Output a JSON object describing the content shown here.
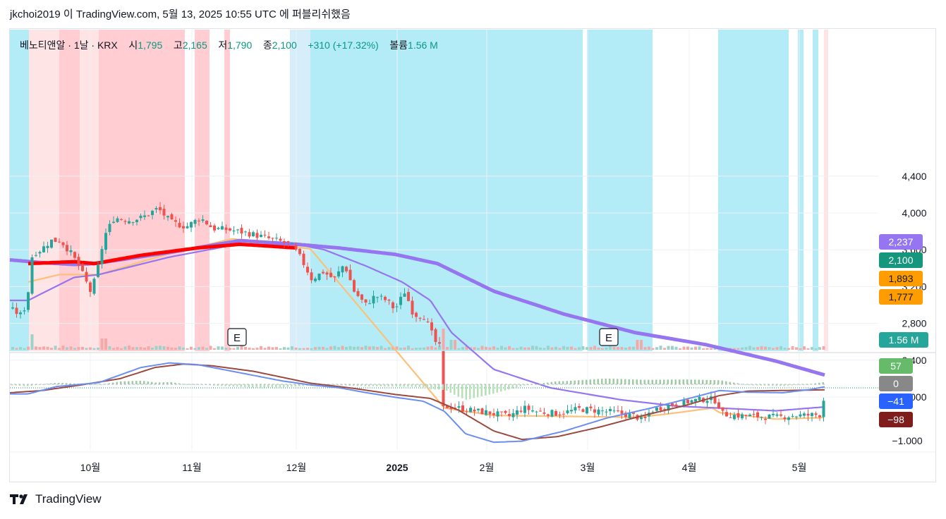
{
  "header": {
    "text": "jkchoi2019 이 TradingView.com, 5월 13, 2025 10:55 UTC 에 퍼블리쉬했음"
  },
  "legend": {
    "symbol": "베노티앤알 · 1날 · KRX",
    "open_label": "시",
    "open": "1,795",
    "high_label": "고",
    "high": "2,165",
    "low_label": "저",
    "low": "1,790",
    "close_label": "종",
    "close": "2,100",
    "change": "+310 (+17.32%)",
    "volume_label": "볼륨",
    "volume": "1.56 M"
  },
  "price_badges": [
    {
      "text": "2,237",
      "value": 2237,
      "color": "#9575f0"
    },
    {
      "text": "2,100",
      "value": 2100,
      "color": "#16967c"
    },
    {
      "text": "1,893",
      "value": 1893,
      "color": "#ff9d00"
    },
    {
      "text": "1,777",
      "value": 1777,
      "color": "#ff9d00"
    }
  ],
  "volume_badge": {
    "text": "1.56 M",
    "color": "#26a69a"
  },
  "macd_badges": [
    {
      "text": "57",
      "value": 57,
      "color": "#66bb6a"
    },
    {
      "text": "0",
      "value": 0,
      "color": "#888888"
    },
    {
      "text": "−41",
      "value": -41,
      "color": "#2962ff"
    },
    {
      "text": "−98",
      "value": -98,
      "color": "#7f1d1d"
    }
  ],
  "earnings_marker": "E",
  "footer": {
    "brand": "TradingView",
    "logo_icon": "tradingview-logo-icon"
  },
  "colors": {
    "up": "#26a69a",
    "down": "#ef5350",
    "sma_fast": "#9575f0",
    "sma_slow": "#9575f0",
    "ema_orange": "#fbc17a",
    "ema_red": "#ff0000",
    "macd": "#6b8ef0",
    "signal": "#9c4a3f",
    "bg_cyan": "#b3ebf7",
    "bg_red": "#ffcdd2",
    "bg_lightred": "#ffe4e6"
  },
  "chart_data": {
    "type": "candlestick",
    "title": "베노티앤알 · 1날 · KRX",
    "price_axis": {
      "ticks": [
        "4,400",
        "4,000",
        "3,600",
        "3,200",
        "2,800",
        "2,400",
        "2,000"
      ],
      "tick_values": [
        4400,
        4000,
        3600,
        3200,
        2800,
        2400,
        2000
      ],
      "range": [
        1500,
        4600
      ]
    },
    "macd_axis": {
      "ticks": [
        "−1.000"
      ],
      "tick_values": [
        -1000
      ],
      "range": [
        -1150,
        300
      ]
    },
    "x_axis": {
      "labels": [
        "10월",
        "11월",
        "12월",
        "2025",
        "2월",
        "3월",
        "4월",
        "5월"
      ]
    },
    "earnings_events": [
      "2024-11 E",
      "2025-03 E"
    ],
    "ohlc_sample": [
      {
        "period": "2024-09 early",
        "open": 3000,
        "high": 3050,
        "low": 2900,
        "close": 2950
      },
      {
        "period": "2024-09 mid",
        "open": 2950,
        "high": 3800,
        "low": 2950,
        "close": 3700
      },
      {
        "period": "2024-09 late",
        "open": 3700,
        "high": 3820,
        "low": 3350,
        "close": 3400
      },
      {
        "period": "2024-10 early",
        "open": 3200,
        "high": 3350,
        "low": 2980,
        "close": 3250
      },
      {
        "period": "2024-10 mid",
        "open": 3800,
        "high": 4050,
        "low": 3700,
        "close": 3950
      },
      {
        "period": "2024-10 late",
        "open": 3950,
        "high": 4250,
        "low": 3850,
        "close": 4000
      },
      {
        "period": "2024-11 early",
        "open": 3850,
        "high": 4050,
        "low": 3700,
        "close": 3900
      },
      {
        "period": "2024-11 mid",
        "open": 3750,
        "high": 3900,
        "low": 3600,
        "close": 3700
      },
      {
        "period": "2024-11 late",
        "open": 3700,
        "high": 3750,
        "low": 3400,
        "close": 3650
      },
      {
        "period": "2024-12 early",
        "open": 3600,
        "high": 3650,
        "low": 3250,
        "close": 3300
      },
      {
        "period": "2024-12 mid",
        "open": 3400,
        "high": 3500,
        "low": 3100,
        "close": 3200
      },
      {
        "period": "2024-12 late",
        "open": 3200,
        "high": 3300,
        "low": 2950,
        "close": 3100
      },
      {
        "period": "2025-01 early",
        "open": 3150,
        "high": 3300,
        "low": 3000,
        "close": 3250
      },
      {
        "period": "2025-01 mid",
        "open": 3000,
        "high": 3050,
        "low": 2650,
        "close": 2700
      },
      {
        "period": "2025-01 crash",
        "open": 2700,
        "high": 2700,
        "low": 1750,
        "close": 1800
      },
      {
        "period": "2025-02",
        "open": 1800,
        "high": 1830,
        "low": 1700,
        "close": 1720
      },
      {
        "period": "2025-03",
        "open": 1780,
        "high": 1830,
        "low": 1720,
        "close": 1790
      },
      {
        "period": "2025-03 late",
        "open": 1750,
        "high": 1780,
        "low": 1550,
        "close": 1700
      },
      {
        "period": "2025-04 early",
        "open": 1880,
        "high": 1950,
        "low": 1840,
        "close": 1920
      },
      {
        "period": "2025-04 mid",
        "open": 1870,
        "high": 1890,
        "low": 1720,
        "close": 1730
      },
      {
        "period": "2025-05 early",
        "open": 1760,
        "high": 1800,
        "low": 1740,
        "close": 1770
      },
      {
        "period": "2025-05-13",
        "open": 1795,
        "high": 2165,
        "low": 1790,
        "close": 2100
      }
    ],
    "indicators": {
      "sma_long_last": 2237,
      "sma_mid_last": 1893,
      "ema_last": 1777,
      "macd_last": -41,
      "signal_last": -98,
      "histogram_last": 57
    },
    "volume_last": "1.56 M"
  }
}
